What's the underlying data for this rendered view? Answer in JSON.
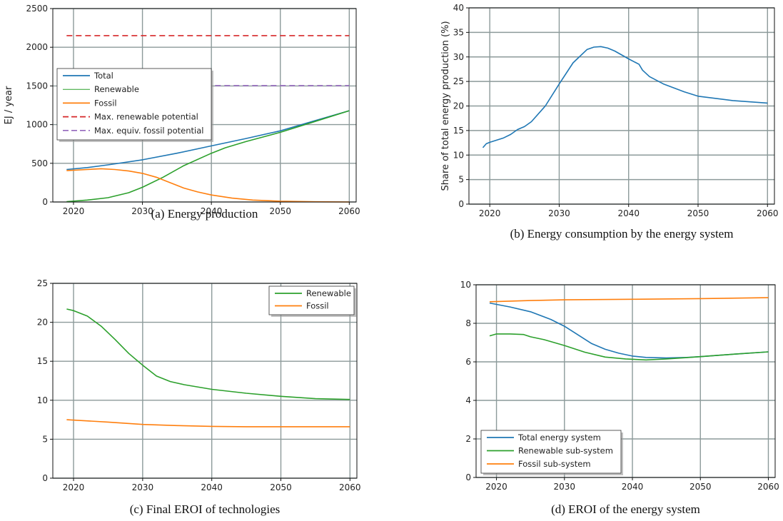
{
  "chart_data": [
    {
      "id": "a",
      "type": "line",
      "caption": "(a) Energy production",
      "ylabel": "EJ / year",
      "xlim": [
        2017,
        2061
      ],
      "ylim": [
        0,
        2500
      ],
      "xticks": [
        2020,
        2030,
        2040,
        2050,
        2060
      ],
      "yticks": [
        0,
        500,
        1000,
        1500,
        2000,
        2500
      ],
      "grid": true,
      "legend_position": "center-left",
      "series": [
        {
          "name": "Total",
          "color": "#1f77b4",
          "style": "solid",
          "x": [
            2019,
            2022,
            2025,
            2030,
            2035,
            2040,
            2045,
            2050,
            2055,
            2060
          ],
          "y": [
            420,
            445,
            480,
            545,
            630,
            725,
            820,
            920,
            1050,
            1180
          ]
        },
        {
          "name": "Renewable",
          "color": "#2ca02c",
          "style": "solid",
          "x": [
            2019,
            2022,
            2025,
            2028,
            2030,
            2033,
            2036,
            2040,
            2042,
            2045,
            2050,
            2055,
            2060
          ],
          "y": [
            5,
            25,
            55,
            120,
            190,
            320,
            470,
            630,
            700,
            780,
            900,
            1040,
            1180
          ]
        },
        {
          "name": "Fossil",
          "color": "#ff7f0e",
          "style": "solid",
          "x": [
            2019,
            2022,
            2024,
            2026,
            2028,
            2030,
            2032,
            2034,
            2036,
            2038,
            2040,
            2043,
            2046,
            2050,
            2055,
            2060
          ],
          "y": [
            405,
            420,
            430,
            420,
            400,
            370,
            320,
            250,
            180,
            130,
            90,
            50,
            25,
            10,
            3,
            0
          ]
        },
        {
          "name": "Max. renewable potential",
          "color": "#d62728",
          "style": "dashed",
          "x": [
            2019,
            2060
          ],
          "y": [
            2150,
            2150
          ]
        },
        {
          "name": "Max. equiv. fossil potential",
          "color": "#9467bd",
          "style": "dashed",
          "x": [
            2019,
            2060
          ],
          "y": [
            1505,
            1505
          ]
        }
      ]
    },
    {
      "id": "b",
      "type": "line",
      "caption": "(b) Energy consumption by the energy system",
      "ylabel": "Share of total energy production (%)",
      "xlim": [
        2017,
        2061
      ],
      "ylim": [
        0,
        40
      ],
      "xticks": [
        2020,
        2030,
        2040,
        2050,
        2060
      ],
      "yticks": [
        0,
        5,
        10,
        15,
        20,
        25,
        30,
        35,
        40
      ],
      "grid": true,
      "series": [
        {
          "name": "",
          "color": "#1f77b4",
          "style": "solid",
          "x": [
            2019,
            2019.5,
            2020,
            2022,
            2023,
            2024,
            2024.5,
            2025,
            2026,
            2028,
            2030,
            2032,
            2034,
            2035,
            2036,
            2037,
            2038,
            2040,
            2041.5,
            2042,
            2043,
            2045,
            2048,
            2050,
            2055,
            2060
          ],
          "y": [
            11.5,
            12.3,
            12.6,
            13.5,
            14.2,
            15.2,
            15.5,
            15.8,
            16.8,
            20.0,
            24.5,
            28.8,
            31.5,
            32.0,
            32.1,
            31.8,
            31.2,
            29.6,
            28.5,
            27.3,
            26.0,
            24.5,
            22.9,
            22.0,
            21.1,
            20.6
          ]
        }
      ]
    },
    {
      "id": "c",
      "type": "line",
      "caption": "(c) Final EROI of technologies",
      "ylabel": "",
      "xlim": [
        2017,
        2061
      ],
      "ylim": [
        0,
        25
      ],
      "xticks": [
        2020,
        2030,
        2040,
        2050,
        2060
      ],
      "yticks": [
        0,
        5,
        10,
        15,
        20,
        25
      ],
      "grid": true,
      "legend_position": "top-right",
      "series": [
        {
          "name": "Renewable",
          "color": "#2ca02c",
          "style": "solid",
          "x": [
            2019,
            2020,
            2022,
            2024,
            2026,
            2028,
            2030,
            2032,
            2034,
            2036,
            2040,
            2045,
            2050,
            2055,
            2060
          ],
          "y": [
            21.7,
            21.5,
            20.8,
            19.5,
            17.8,
            16.0,
            14.5,
            13.1,
            12.4,
            12.0,
            11.4,
            10.9,
            10.5,
            10.2,
            10.1
          ]
        },
        {
          "name": "Fossil",
          "color": "#ff7f0e",
          "style": "solid",
          "x": [
            2019,
            2025,
            2030,
            2035,
            2040,
            2045,
            2050,
            2055,
            2060
          ],
          "y": [
            7.5,
            7.2,
            6.9,
            6.75,
            6.65,
            6.6,
            6.6,
            6.6,
            6.6
          ]
        }
      ]
    },
    {
      "id": "d",
      "type": "line",
      "caption": "(d) EROI of the energy system",
      "ylabel": "",
      "xlim": [
        2017,
        2061
      ],
      "ylim": [
        0,
        10
      ],
      "xticks": [
        2020,
        2030,
        2040,
        2050,
        2060
      ],
      "yticks": [
        0,
        2,
        4,
        6,
        8,
        10
      ],
      "grid": true,
      "legend_position": "bottom-left",
      "series": [
        {
          "name": "Total energy system",
          "color": "#1f77b4",
          "style": "solid",
          "x": [
            2019,
            2022,
            2025,
            2028,
            2030,
            2032,
            2034,
            2036,
            2038,
            2040,
            2042,
            2045,
            2048,
            2050,
            2055,
            2060
          ],
          "y": [
            9.05,
            8.85,
            8.6,
            8.2,
            7.85,
            7.4,
            6.95,
            6.65,
            6.45,
            6.3,
            6.23,
            6.2,
            6.23,
            6.27,
            6.4,
            6.52
          ]
        },
        {
          "name": "Renewable sub-system",
          "color": "#2ca02c",
          "style": "solid",
          "x": [
            2019,
            2020,
            2022,
            2024,
            2025,
            2027,
            2030,
            2033,
            2036,
            2039,
            2042,
            2045,
            2048,
            2050,
            2055,
            2060
          ],
          "y": [
            7.35,
            7.45,
            7.45,
            7.42,
            7.3,
            7.15,
            6.85,
            6.5,
            6.25,
            6.15,
            6.1,
            6.15,
            6.22,
            6.27,
            6.4,
            6.52
          ]
        },
        {
          "name": "Fossil sub-system",
          "color": "#ff7f0e",
          "style": "solid",
          "x": [
            2019,
            2025,
            2030,
            2040,
            2050,
            2060
          ],
          "y": [
            9.12,
            9.18,
            9.22,
            9.25,
            9.28,
            9.33
          ]
        }
      ]
    }
  ]
}
